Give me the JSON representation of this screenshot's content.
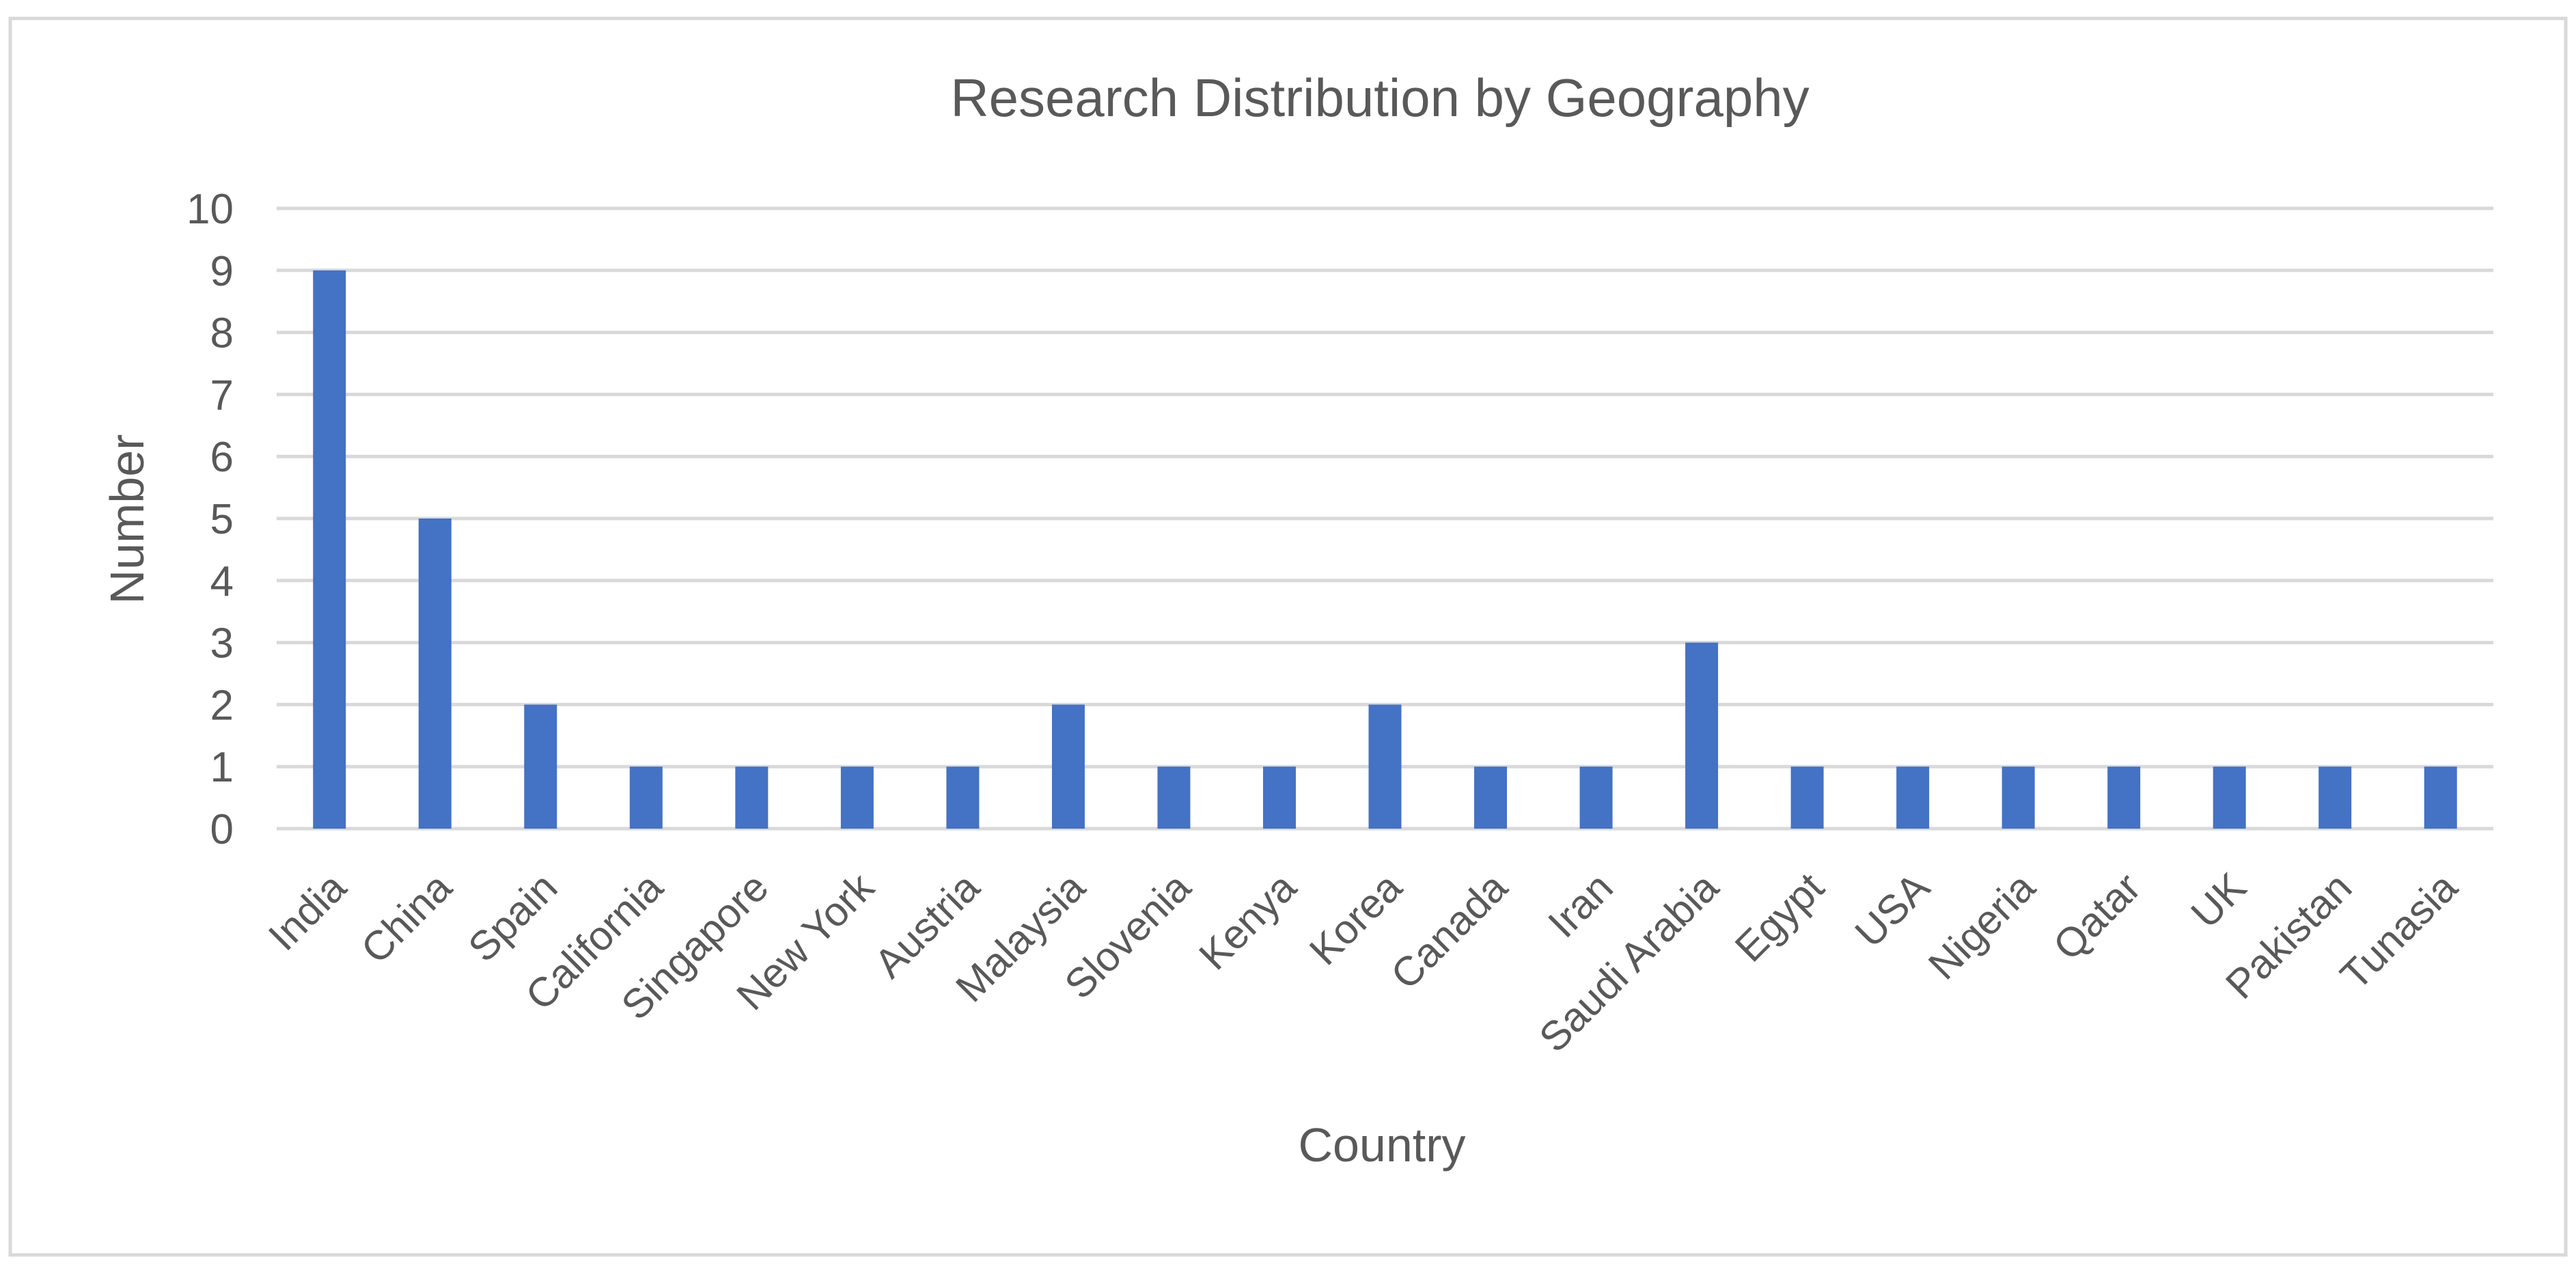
{
  "chart_data": {
    "type": "bar",
    "title": "Research Distribution by Geography",
    "xlabel": "Country",
    "ylabel": "Number",
    "categories": [
      "India",
      "China",
      "Spain",
      "California",
      "Singapore",
      "New York",
      "Austria",
      "Malaysia",
      "Slovenia",
      "Kenya",
      "Korea",
      "Canada",
      "Iran",
      "Saudi Arabia",
      "Egypt",
      "USA",
      "Nigeria",
      "Qatar",
      "UK",
      "Pakistan",
      "Tunasia"
    ],
    "values": [
      9,
      5,
      2,
      1,
      1,
      1,
      1,
      2,
      1,
      1,
      2,
      1,
      1,
      3,
      1,
      1,
      1,
      1,
      1,
      1,
      1
    ],
    "ylim": [
      0,
      10
    ],
    "yticks": [
      "0",
      "1",
      "2",
      "3",
      "4",
      "5",
      "6",
      "7",
      "8",
      "9",
      "10"
    ],
    "grid": true,
    "legend": "none",
    "colors": {
      "bar": "#4472C4",
      "grid": "#D9D9D9",
      "text": "#595959",
      "frame": "#D9D9D9"
    }
  }
}
